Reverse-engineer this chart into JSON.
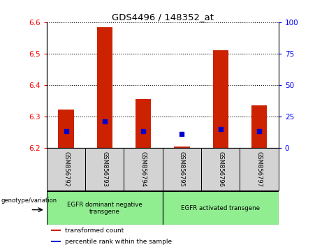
{
  "title": "GDS4496 / 148352_at",
  "samples": [
    "GSM856792",
    "GSM856793",
    "GSM856794",
    "GSM856795",
    "GSM856796",
    "GSM856797"
  ],
  "red_values": [
    6.322,
    6.585,
    6.355,
    6.205,
    6.51,
    6.335
  ],
  "blue_values": [
    6.255,
    6.285,
    6.255,
    6.245,
    6.26,
    6.255
  ],
  "y_min": 6.2,
  "y_max": 6.6,
  "y_ticks_left": [
    6.2,
    6.3,
    6.4,
    6.5,
    6.6
  ],
  "y_ticks_right": [
    0,
    25,
    50,
    75,
    100
  ],
  "bar_bottom": 6.2,
  "groups": [
    {
      "label": "EGFR dominant negative\ntransgene",
      "start": 0,
      "end": 3
    },
    {
      "label": "EGFR activated transgene",
      "start": 3,
      "end": 6
    }
  ],
  "legend_items": [
    {
      "color": "#cc2200",
      "label": "transformed count"
    },
    {
      "color": "#0000cc",
      "label": "percentile rank within the sample"
    }
  ],
  "bar_color": "#cc2200",
  "dot_color": "#0000cc",
  "bar_width": 0.4,
  "dot_size": 18
}
